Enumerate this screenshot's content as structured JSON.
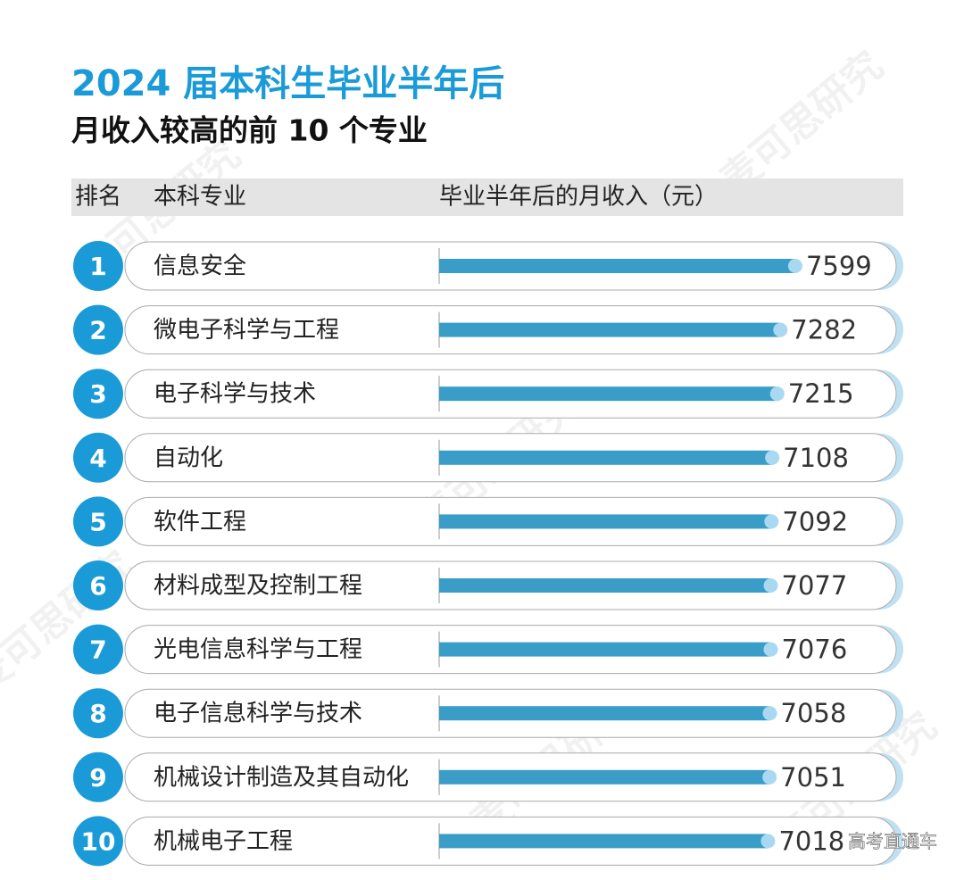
{
  "chart_data": {
    "type": "bar",
    "title": "2024 届本科生毕业半年后",
    "subtitle": "月收入较高的前 10 个专业",
    "headers": [
      "排名",
      "本科专业",
      "毕业半年后的月收入（元）"
    ],
    "ranks": [
      1,
      2,
      3,
      4,
      5,
      6,
      7,
      8,
      9,
      10
    ],
    "categories": [
      "信息安全",
      "微电子科学与工程",
      "电子科学与技术",
      "自动化",
      "软件工程",
      "材料成型及控制工程",
      "光电信息科学与工程",
      "电子信息科学与技术",
      "机械设计制造及其自动化",
      "机械电子工程"
    ],
    "values": [
      7599,
      7282,
      7215,
      7108,
      7092,
      7077,
      7076,
      7058,
      7051,
      7018
    ],
    "xlim": [
      0,
      8000
    ],
    "color": "#3a9dc8",
    "rank_color": "#1a9bd7",
    "watermark": "麦可思研究",
    "source": "高考直通车"
  }
}
